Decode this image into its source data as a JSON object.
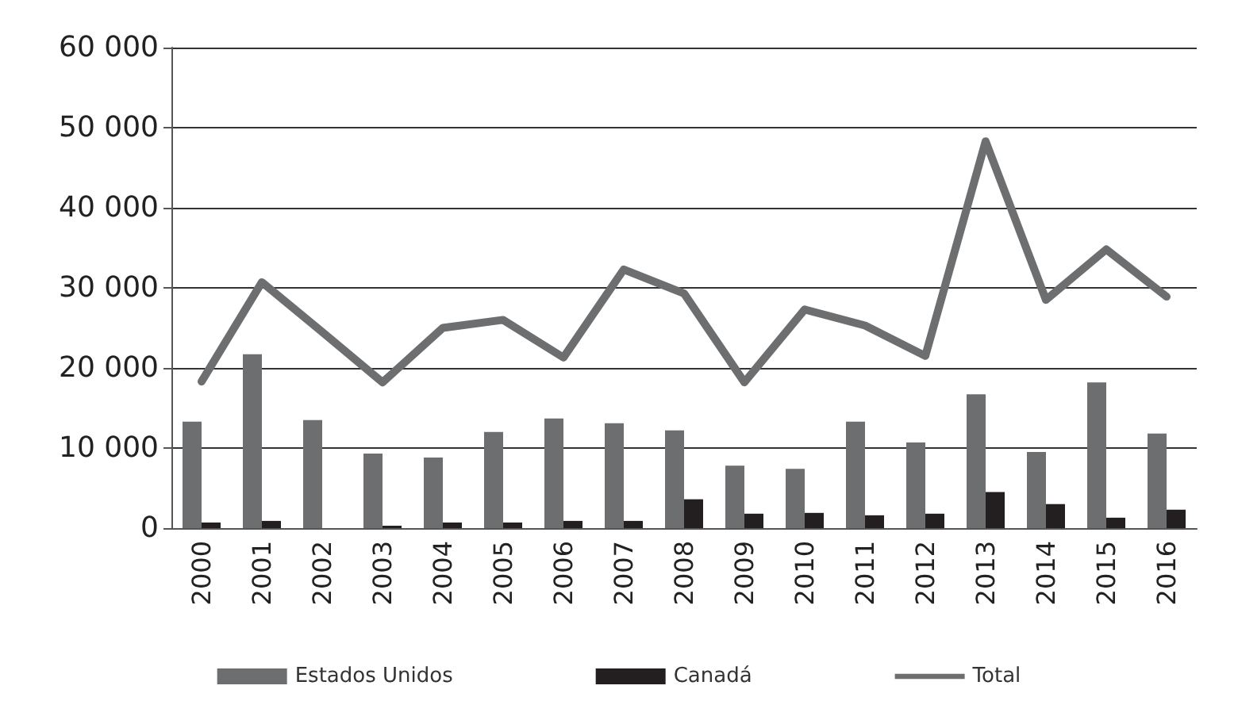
{
  "chart_data": {
    "type": "bar",
    "categories": [
      "2000",
      "2001",
      "2002",
      "2003",
      "2004",
      "2005",
      "2006",
      "2007",
      "2008",
      "2009",
      "2010",
      "2011",
      "2012",
      "2013",
      "2014",
      "2015",
      "2016"
    ],
    "series": [
      {
        "name": "Estados Unidos",
        "color": "#6d6e70",
        "values": [
          13300,
          21700,
          13500,
          9300,
          8800,
          12000,
          13700,
          13100,
          12200,
          7800,
          7400,
          13300,
          10700,
          16700,
          9500,
          18200,
          11800
        ]
      },
      {
        "name": "Canadá",
        "color": "#231f20",
        "values": [
          700,
          900,
          0,
          300,
          700,
          700,
          900,
          900,
          3600,
          1800,
          1900,
          1600,
          1800,
          4500,
          3000,
          1300,
          2300
        ]
      },
      {
        "name": "Total",
        "type": "line",
        "color": "#6d6e70",
        "values": [
          18300,
          30700,
          24500,
          18200,
          25000,
          26000,
          21300,
          32300,
          29300,
          18200,
          27300,
          25300,
          21500,
          48300,
          28500,
          34800,
          28900
        ]
      }
    ],
    "ylim": [
      0,
      60000
    ],
    "yticks": [
      {
        "value": 0,
        "label": "0"
      },
      {
        "value": 10000,
        "label": "10 000"
      },
      {
        "value": 20000,
        "label": "20 000"
      },
      {
        "value": 30000,
        "label": "30 000"
      },
      {
        "value": 40000,
        "label": "40 000"
      },
      {
        "value": 50000,
        "label": "50 000"
      },
      {
        "value": 60000,
        "label": "60 000"
      }
    ],
    "grid": "y",
    "legend": "bottom",
    "marker": "none",
    "line_style": "solid"
  }
}
